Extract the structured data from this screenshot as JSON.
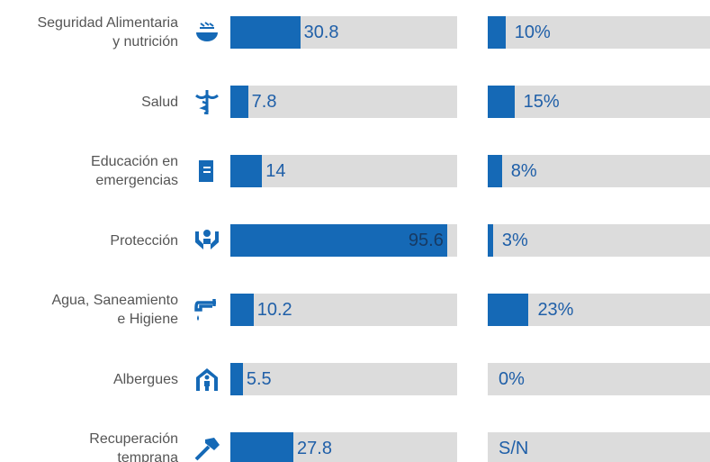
{
  "chart_data": {
    "type": "bar",
    "categories": [
      "Seguridad Alimentaria\ny nutrición",
      "Salud",
      "Educación en\nemergencias",
      "Protección",
      "Agua, Saneamiento\ne Higiene",
      "Albergues",
      "Recuperación\ntemprana"
    ],
    "series": [
      {
        "values": [
          30.8,
          7.8,
          14,
          95.6,
          10.2,
          5.5,
          27.8
        ],
        "color": "#1569b6"
      },
      {
        "values": [
          10,
          15,
          8,
          3,
          23,
          0,
          null
        ],
        "value_labels": [
          "10%",
          "15%",
          "8%",
          "3%",
          "23%",
          "0%",
          "S/N"
        ],
        "color": "#1569b6",
        "axis": "x2"
      }
    ],
    "xlim": [
      0,
      100
    ],
    "x2lim": [
      0,
      125
    ]
  }
}
